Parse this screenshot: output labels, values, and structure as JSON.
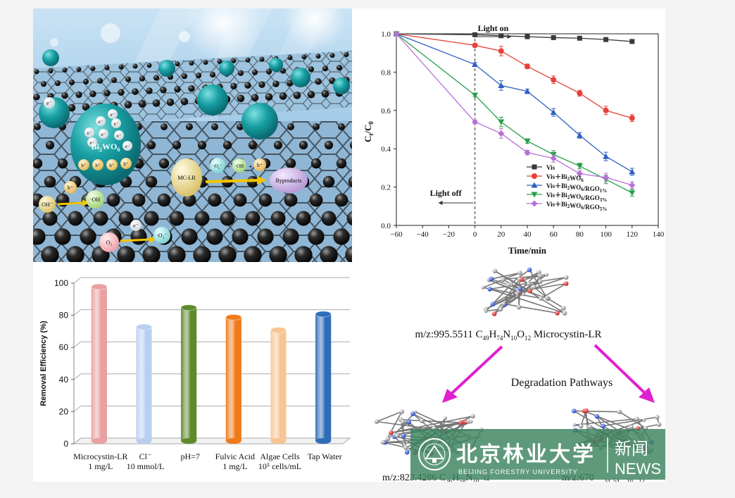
{
  "schematic": {
    "catalyst_label": "Bi",
    "catalyst_sub1": "2",
    "catalyst_mid": "WO",
    "catalyst_sub2": "6",
    "electron": "e⁻",
    "hole": "h⁺",
    "target_label": "MC-LR",
    "radical_superoxide": "·O₂⁻",
    "radical_hydroxyl": "·OH",
    "hole_sym": "h⁺",
    "plus": "+",
    "byproducts_label": "Byproducts",
    "oh_minus": "OH⁻",
    "oh_radical": "·OH",
    "o2": "O₂",
    "o2_radical": "·O₂⁻"
  },
  "kinetics_chart": {
    "ylabel_main": "C",
    "ylabel_sub_t": "t",
    "ylabel_sep": "/C",
    "ylabel_sub_0": "0",
    "annotation_light_on": "Light on",
    "annotation_light_off": "Light off"
  },
  "chart_data": [
    {
      "type": "line",
      "xlabel": "Time/min",
      "ylabel": "Ct/C0",
      "xlim": [
        -60,
        140
      ],
      "ylim": [
        0.0,
        1.0
      ],
      "x_ticks": [
        "−60",
        "−40",
        "−20",
        "0",
        "20",
        "40",
        "60",
        "80",
        "100",
        "120",
        "140"
      ],
      "y_ticks": [
        "0.0",
        "0.2",
        "0.4",
        "0.6",
        "0.8",
        "1.0"
      ],
      "x": [
        -60,
        0,
        20,
        40,
        60,
        80,
        100,
        120
      ],
      "series": [
        {
          "name": "Vis",
          "color": "#3a3a3a",
          "marker": "square",
          "values": [
            1.0,
            0.995,
            0.99,
            0.985,
            0.98,
            0.977,
            0.97,
            0.96
          ]
        },
        {
          "name": "Vis+Bi2WO6",
          "color": "#e8403a",
          "marker": "circle",
          "values": [
            1.0,
            0.94,
            0.91,
            0.83,
            0.76,
            0.69,
            0.6,
            0.56
          ]
        },
        {
          "name": "Vis+Bi2WO6/RGO1%",
          "color": "#2f5fc4",
          "marker": "triangle-up",
          "values": [
            1.0,
            0.84,
            0.73,
            0.7,
            0.59,
            0.47,
            0.36,
            0.28
          ]
        },
        {
          "name": "Vis+Bi2WO6/RGO3%",
          "color": "#26a04a",
          "marker": "triangle-down",
          "values": [
            1.0,
            0.68,
            0.54,
            0.44,
            0.37,
            0.31,
            0.24,
            0.17
          ]
        },
        {
          "name": "Vis+Bi2WO6/RGO5%",
          "color": "#b86fd6",
          "marker": "diamond",
          "values": [
            1.0,
            0.54,
            0.48,
            0.38,
            0.35,
            0.27,
            0.25,
            0.21
          ]
        }
      ],
      "legend_placement": "bottom-right",
      "errorbars": true
    },
    {
      "type": "bar",
      "ylabel": "Removal Efficiency (%)",
      "ylim": [
        0,
        100
      ],
      "y_ticks": [
        "0",
        "20",
        "40",
        "60",
        "80",
        "100"
      ],
      "categories": [
        [
          "Microcystin-LR",
          "1 mg/L"
        ],
        [
          "Cl⁻",
          "10 mmol/L"
        ],
        [
          "pH=7",
          ""
        ],
        [
          "Fulvic Acid",
          "1 mg/L"
        ],
        [
          "Algae Cells",
          "10⁵ cells/mL"
        ],
        [
          "Tap Water",
          ""
        ]
      ],
      "values": [
        96,
        71,
        83,
        77,
        69,
        79
      ],
      "colors": [
        "#e8a0a0",
        "#b8cff2",
        "#5e8a2c",
        "#f07a1a",
        "#f8c493",
        "#2f6cb8"
      ],
      "style": "3d-cylinders",
      "grid": true
    }
  ],
  "pathways": {
    "parent_prefix": "m/z:995.5511 C",
    "parent_s1": "49",
    "parent_h": "H",
    "parent_s2": "74",
    "parent_n": "N",
    "parent_s3": "10",
    "parent_o": "O",
    "parent_s4": "12",
    "parent_name": " Microcystin-LR",
    "center_label": "Degradation Pathways",
    "product_left_prefix": "m/z:823.4286 C",
    "product_left_sub1": "36",
    "product_left_sub2": "58",
    "product_left_sub3": "10",
    "product_left_sub4": "12",
    "product_left_h": "H",
    "product_left_n": "N",
    "product_right_prefix": "m/z:",
    "product_right_mid": "670",
    "product_right_sub1": "34",
    "product_right_sub2": "54",
    "product_right_sub3": "10",
    "product_right_sub4": "12"
  },
  "watermark": {
    "cn_name": "北京林业大学",
    "en_name": "BEIJING FORESTRY UNIVERSITY",
    "news_cn": "新闻",
    "news_en": "NEWS"
  }
}
